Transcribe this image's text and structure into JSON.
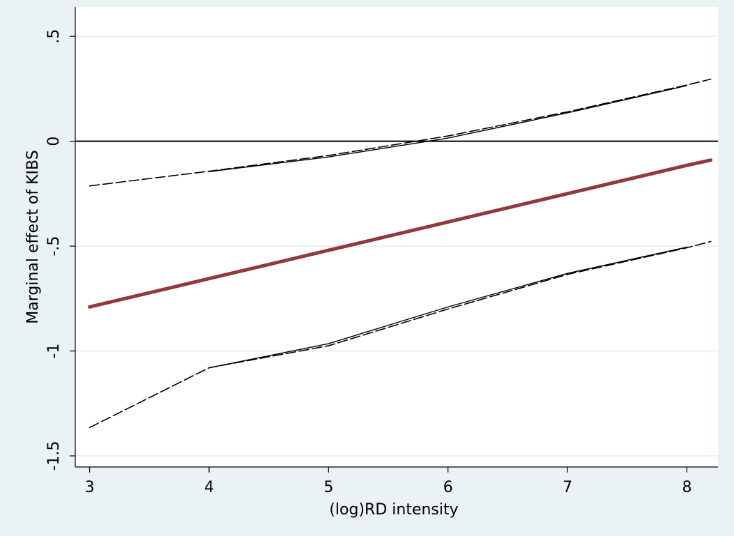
{
  "chart_data": {
    "type": "line",
    "xlabel": "(log)RD intensity",
    "ylabel": "Marginal effect of KIBS",
    "x": [
      3,
      4,
      5,
      6,
      7,
      8,
      8.2
    ],
    "series": [
      {
        "color": "#8f3b3b",
        "style": "solid",
        "width": 5,
        "values": [
          -0.79,
          -0.655,
          -0.52,
          -0.385,
          -0.25,
          -0.115,
          -0.09
        ]
      },
      {
        "color": "#000000",
        "style": "dashed",
        "width": 1.6,
        "values": [
          -0.213,
          -0.143,
          -0.068,
          0.025,
          0.14,
          0.268,
          0.296
        ]
      },
      {
        "color": "#000000",
        "style": "solid",
        "width": 1.4,
        "values": [
          null,
          -0.145,
          -0.075,
          0.015,
          0.135,
          0.265,
          null
        ]
      },
      {
        "color": "#000000",
        "style": "dashed",
        "width": 1.6,
        "values": [
          -1.365,
          -1.08,
          -0.975,
          -0.8,
          -0.635,
          -0.508,
          -0.478
        ]
      },
      {
        "color": "#000000",
        "style": "solid",
        "width": 1.4,
        "values": [
          null,
          -1.08,
          -0.965,
          -0.79,
          -0.63,
          -0.505,
          null
        ]
      }
    ],
    "hline": 0,
    "xlim": [
      2.88,
      8.26
    ],
    "ylim": [
      -1.553,
      0.64
    ],
    "xticks": [
      3,
      4,
      5,
      6,
      7,
      8
    ],
    "yticks": [
      {
        "value": 0.5,
        "label": ".5"
      },
      0,
      {
        "value": -0.5,
        "label": "-.5"
      },
      -1,
      -1.5
    ],
    "grid": true
  }
}
